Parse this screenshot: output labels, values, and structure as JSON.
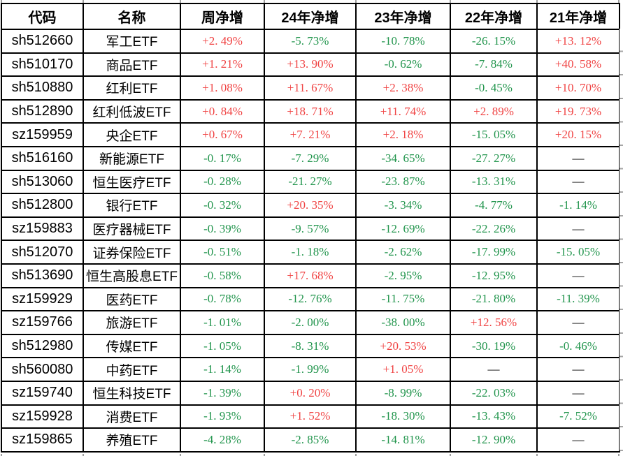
{
  "colors": {
    "positive": "#f04444",
    "negative": "#22954d",
    "neutral": "#000000",
    "border": "#000000",
    "gridline": "#9e9e9e"
  },
  "table": {
    "columns": [
      "代码",
      "名称",
      "周净增",
      "24年净增",
      "23年净增",
      "22年净增",
      "21年净增"
    ],
    "rows": [
      {
        "code": "sh512660",
        "name": "军工ETF",
        "values": [
          "+2.49%",
          "-5.73%",
          "-10.78%",
          "-26.15%",
          "+13.12%"
        ]
      },
      {
        "code": "sh510170",
        "name": "商品ETF",
        "values": [
          "+1.21%",
          "+13.90%",
          "-0.62%",
          "-7.84%",
          "+40.58%"
        ]
      },
      {
        "code": "sh510880",
        "name": "红利ETF",
        "values": [
          "+1.08%",
          "+11.67%",
          "+2.38%",
          "-0.45%",
          "+10.70%"
        ]
      },
      {
        "code": "sh512890",
        "name": "红利低波ETF",
        "values": [
          "+0.84%",
          "+18.71%",
          "+11.74%",
          "+2.89%",
          "+19.73%"
        ]
      },
      {
        "code": "sz159959",
        "name": "央企ETF",
        "values": [
          "+0.67%",
          "+7.21%",
          "+2.18%",
          "-15.05%",
          "+20.15%"
        ]
      },
      {
        "code": "sh516160",
        "name": "新能源ETF",
        "values": [
          "-0.17%",
          "-7.29%",
          "-34.65%",
          "-27.27%",
          "—"
        ]
      },
      {
        "code": "sh513060",
        "name": "恒生医疗ETF",
        "values": [
          "-0.28%",
          "-21.27%",
          "-23.87%",
          "-13.31%",
          "—"
        ]
      },
      {
        "code": "sh512800",
        "name": "银行ETF",
        "values": [
          "-0.32%",
          "+20.35%",
          "-3.34%",
          "-4.77%",
          "-1.14%"
        ]
      },
      {
        "code": "sz159883",
        "name": "医疗器械ETF",
        "values": [
          "-0.39%",
          "-9.57%",
          "-12.69%",
          "-22.26%",
          "—"
        ]
      },
      {
        "code": "sh512070",
        "name": "证券保险ETF",
        "values": [
          "-0.51%",
          "-1.18%",
          "-2.62%",
          "-17.99%",
          "-15.05%"
        ]
      },
      {
        "code": "sh513690",
        "name": "恒生高股息ETF",
        "values": [
          "-0.58%",
          "+17.68%",
          "-2.95%",
          "-12.95%",
          "—"
        ]
      },
      {
        "code": "sz159929",
        "name": "医药ETF",
        "values": [
          "-0.78%",
          "-12.76%",
          "-11.75%",
          "-21.80%",
          "-11.39%"
        ]
      },
      {
        "code": "sz159766",
        "name": "旅游ETF",
        "values": [
          "-1.01%",
          "-2.00%",
          "-38.00%",
          "+12.56%",
          "—"
        ]
      },
      {
        "code": "sh512980",
        "name": "传媒ETF",
        "values": [
          "-1.05%",
          "-8.31%",
          "+20.53%",
          "-30.19%",
          "-0.46%"
        ]
      },
      {
        "code": "sh560080",
        "name": "中药ETF",
        "values": [
          "-1.14%",
          "-1.99%",
          "+1.05%",
          "—",
          "—"
        ]
      },
      {
        "code": "sz159740",
        "name": "恒生科技ETF",
        "values": [
          "-1.39%",
          "+0.20%",
          "-8.99%",
          "-22.03%",
          "—"
        ]
      },
      {
        "code": "sz159928",
        "name": "消费ETF",
        "values": [
          "-1.93%",
          "+1.52%",
          "-18.30%",
          "-13.43%",
          "-7.52%"
        ]
      },
      {
        "code": "sz159865",
        "name": "养殖ETF",
        "values": [
          "-4.28%",
          "-2.85%",
          "-14.81%",
          "-12.90%",
          "—"
        ]
      }
    ]
  }
}
